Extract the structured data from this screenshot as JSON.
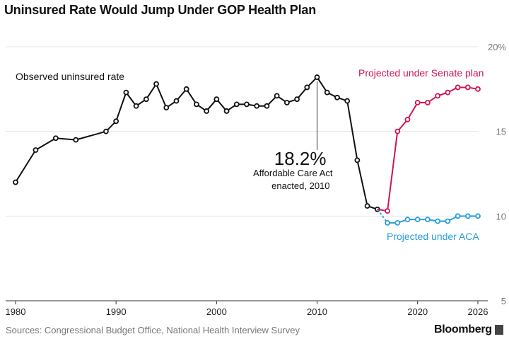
{
  "title": "Uninsured Rate Would Jump Under GOP Health Plan",
  "source": "Sources: Congressional Budget Office, National Health Interview Survey",
  "brand": "Bloomberg",
  "colors": {
    "observed": "#111111",
    "senate": "#d0154f",
    "aca": "#2a9fd8",
    "grid": "#e6e6e6"
  },
  "chart_data": {
    "type": "line",
    "title": "Uninsured Rate Would Jump Under GOP Health Plan",
    "xlabel": "",
    "ylabel": "",
    "xlim": [
      1980,
      2026
    ],
    "ylim": [
      5,
      20
    ],
    "y_ticks": [
      5,
      10,
      15,
      20
    ],
    "y_tick_labels": [
      "5",
      "10",
      "15",
      "20%"
    ],
    "x_ticks": [
      1980,
      1990,
      2000,
      2010,
      2020,
      2026
    ],
    "x_tick_labels": [
      "1980",
      "1990",
      "2000",
      "2010",
      "2020",
      "2026"
    ],
    "grid": true,
    "series": [
      {
        "name": "Observed uninsured rate",
        "x": [
          1980,
          1982,
          1984,
          1986,
          1989,
          1990,
          1991,
          1992,
          1993,
          1994,
          1995,
          1996,
          1997,
          1998,
          1999,
          2000,
          2001,
          2002,
          2003,
          2004,
          2005,
          2006,
          2007,
          2008,
          2009,
          2010,
          2011,
          2012,
          2013,
          2014,
          2015,
          2016
        ],
        "y": [
          12.0,
          13.9,
          14.6,
          14.5,
          15.0,
          15.6,
          17.3,
          16.5,
          16.9,
          17.8,
          16.4,
          16.8,
          17.5,
          16.6,
          16.2,
          16.9,
          16.2,
          16.6,
          16.6,
          16.5,
          16.5,
          17.1,
          16.7,
          16.9,
          17.6,
          18.2,
          17.3,
          17.0,
          16.8,
          13.3,
          10.6,
          10.4
        ]
      },
      {
        "name": "Projected under Senate plan",
        "x": [
          2017,
          2018,
          2019,
          2020,
          2021,
          2022,
          2023,
          2024,
          2025,
          2026
        ],
        "y": [
          10.3,
          15.0,
          15.7,
          16.7,
          16.7,
          17.1,
          17.3,
          17.6,
          17.6,
          17.5
        ]
      },
      {
        "name": "Projected under ACA",
        "x": [
          2017,
          2018,
          2019,
          2020,
          2021,
          2022,
          2023,
          2024,
          2025,
          2026
        ],
        "y": [
          9.6,
          9.6,
          9.8,
          9.8,
          9.8,
          9.7,
          9.7,
          10.0,
          10.0,
          10.0
        ]
      }
    ],
    "annotations": [
      {
        "value": "18.2%",
        "text_line1": "Affordable Care Act",
        "text_line2": "enacted, 2010",
        "x": 2010,
        "y": 18.2
      }
    ],
    "series_labels": {
      "observed": "Observed uninsured rate",
      "senate": "Projected under Senate plan",
      "aca": "Projected under ACA"
    }
  }
}
